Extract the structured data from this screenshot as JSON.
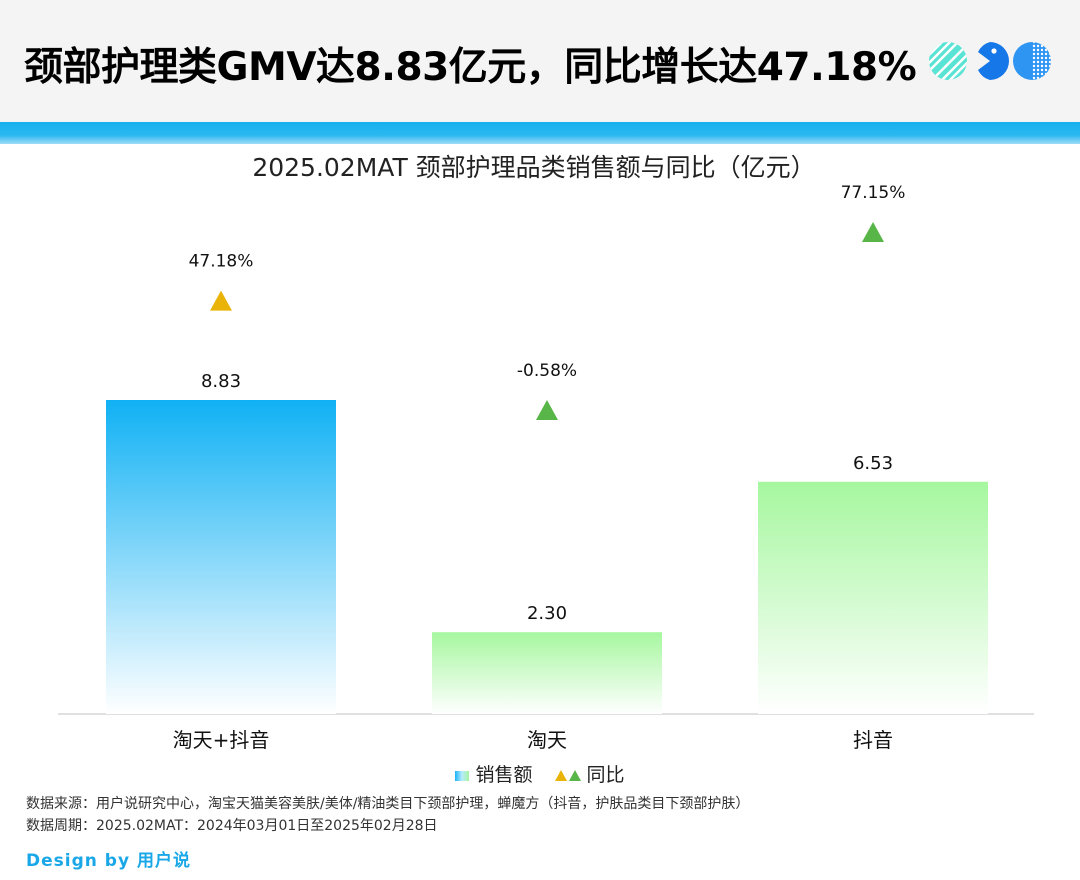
{
  "header": {
    "headline": "颈部护理类GMV达8.83亿元，同比增长达47.18%",
    "logo_icon": "brand-logo-circles-icon"
  },
  "chart_data": {
    "type": "bar",
    "title": "2025.02MAT 颈部护理品类销售额与同比（亿元）",
    "categories": [
      "淘天+抖音",
      "淘天",
      "抖音"
    ],
    "series": [
      {
        "name": "销售额",
        "values": [
          8.83,
          2.3,
          6.53
        ],
        "value_labels": [
          "8.83",
          "2.30",
          "6.53"
        ],
        "bar_colors": [
          [
            "#10b1f4",
            "#ffffff"
          ],
          [
            "#a6f79f",
            "#ffffff"
          ],
          [
            "#a6f79f",
            "#ffffff"
          ]
        ]
      },
      {
        "name": "同比",
        "values": [
          47.18,
          -0.58,
          77.15
        ],
        "value_labels": [
          "47.18%",
          "-0.58%",
          "77.15%"
        ],
        "marker_colors": [
          "#e9b308",
          "#58b547",
          "#58b547"
        ]
      }
    ],
    "ylim": [
      0,
      8.83
    ],
    "grid": false,
    "legend_position": "bottom"
  },
  "legend": {
    "sales_label": "销售额",
    "yoy_label": "同比"
  },
  "footer": {
    "source": "数据来源：用户说研究中心，淘宝天猫美容美肤/美体/精油类目下颈部护理，蝉魔方（抖音，护肤品类目下颈部护肤）",
    "period": "数据周期：2025.02MAT：2024年03月01日至2025年02月28日",
    "brand_prefix": "Design by ",
    "brand_name": "用户说"
  },
  "colors": {
    "accent_blue": "#17b0ee",
    "green": "#58b547",
    "yellow": "#e9b308"
  }
}
